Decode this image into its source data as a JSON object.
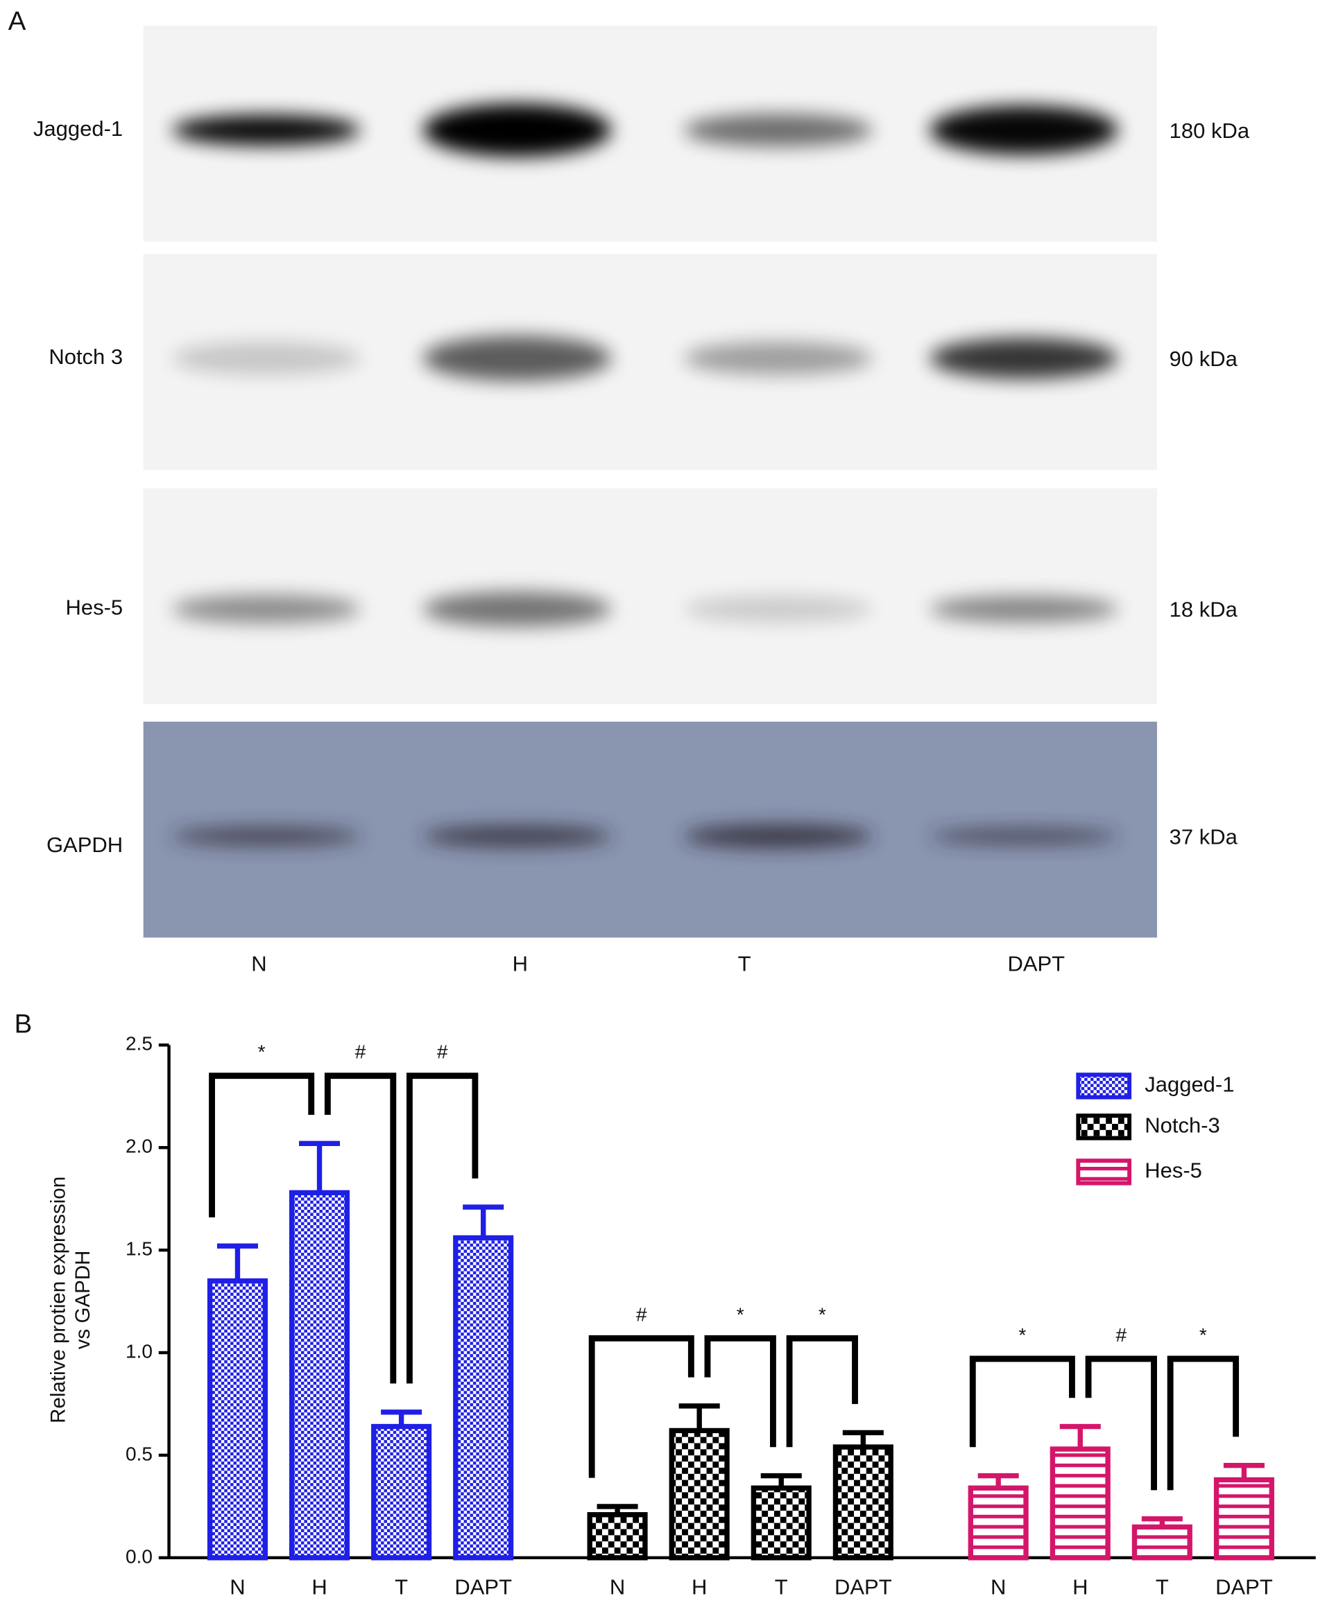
{
  "panel_a": {
    "label": "A",
    "rows": [
      {
        "protein": "Jagged-1",
        "size": "180 kDa"
      },
      {
        "protein": "Notch 3",
        "size": "90 kDa"
      },
      {
        "protein": "Hes-5",
        "size": "18 kDa"
      },
      {
        "protein": "GAPDH",
        "size": "37 kDa"
      }
    ],
    "lanes": [
      "N",
      "H",
      "T",
      "DAPT"
    ]
  },
  "chart_data": {
    "type": "bar",
    "panel_label": "B",
    "ylabel": [
      "Relative protien expression",
      "vs GAPDH"
    ],
    "categories": [
      "N",
      "H",
      "T",
      "DAPT"
    ],
    "ylim": [
      0,
      2.5
    ],
    "yticks": [
      {
        "value": 0,
        "label": "0.0"
      },
      0.5,
      {
        "value": 1,
        "label": "1.0"
      },
      1.5,
      {
        "value": 2,
        "label": "2.0"
      },
      2.5
    ],
    "legend": "top-right",
    "series": [
      {
        "name": "Jagged-1",
        "color": "#1f1fe6",
        "pattern": "checker",
        "values": [
          1.35,
          1.78,
          0.64,
          1.56
        ],
        "errors": [
          0.17,
          0.24,
          0.07,
          0.15
        ],
        "significance": [
          "*",
          "#",
          "#"
        ]
      },
      {
        "name": "Notch-3",
        "color": "#000000",
        "pattern": "checker",
        "values": [
          0.21,
          0.62,
          0.34,
          0.54
        ],
        "errors": [
          0.04,
          0.12,
          0.06,
          0.07
        ],
        "significance": [
          "#",
          "*",
          "*"
        ]
      },
      {
        "name": "Hes-5",
        "color": "#d4166a",
        "pattern": "stripes",
        "values": [
          0.34,
          0.53,
          0.15,
          0.38
        ],
        "errors": [
          0.06,
          0.11,
          0.04,
          0.07
        ],
        "significance": [
          "*",
          "#",
          "*"
        ]
      }
    ]
  }
}
